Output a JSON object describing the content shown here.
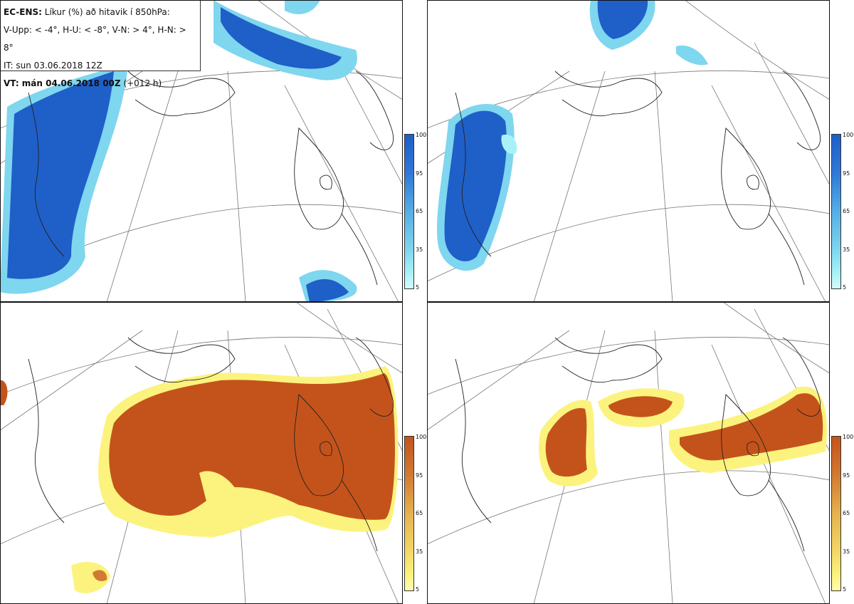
{
  "info": {
    "model": "EC-ENS:",
    "title": "Líkur (%) að hitavik í 850hPa:",
    "legend_text": "V-Upp: < -4°, H-U: < -8°, V-N: > 4°, H-N: > 8°",
    "init_time": "IT: sun 03.06.2018 12Z",
    "valid_label": "VT: mán 04.06.2018 00Z",
    "valid_lead": "(+012 h)"
  },
  "colorbars": {
    "cold": {
      "ticks": [
        "100",
        "95",
        "65",
        "35",
        "5"
      ],
      "colors": [
        "#1f5fc8",
        "#2f78d8",
        "#55aee6",
        "#7fd6ef",
        "#a8f2f7",
        "#d6fbfc"
      ]
    },
    "warm": {
      "ticks": [
        "100",
        "95",
        "65",
        "35",
        "5"
      ],
      "colors": [
        "#c4531b",
        "#d27a32",
        "#e6b24e",
        "#f3d866",
        "#fbf37e",
        "#fffbb0"
      ]
    }
  },
  "panels": [
    {
      "id": "upper-left",
      "variable": "V-Upp"
    },
    {
      "id": "upper-right",
      "variable": "H-U"
    },
    {
      "id": "lower-left",
      "variable": "V-N"
    },
    {
      "id": "lower-right",
      "variable": "H-N"
    }
  ]
}
